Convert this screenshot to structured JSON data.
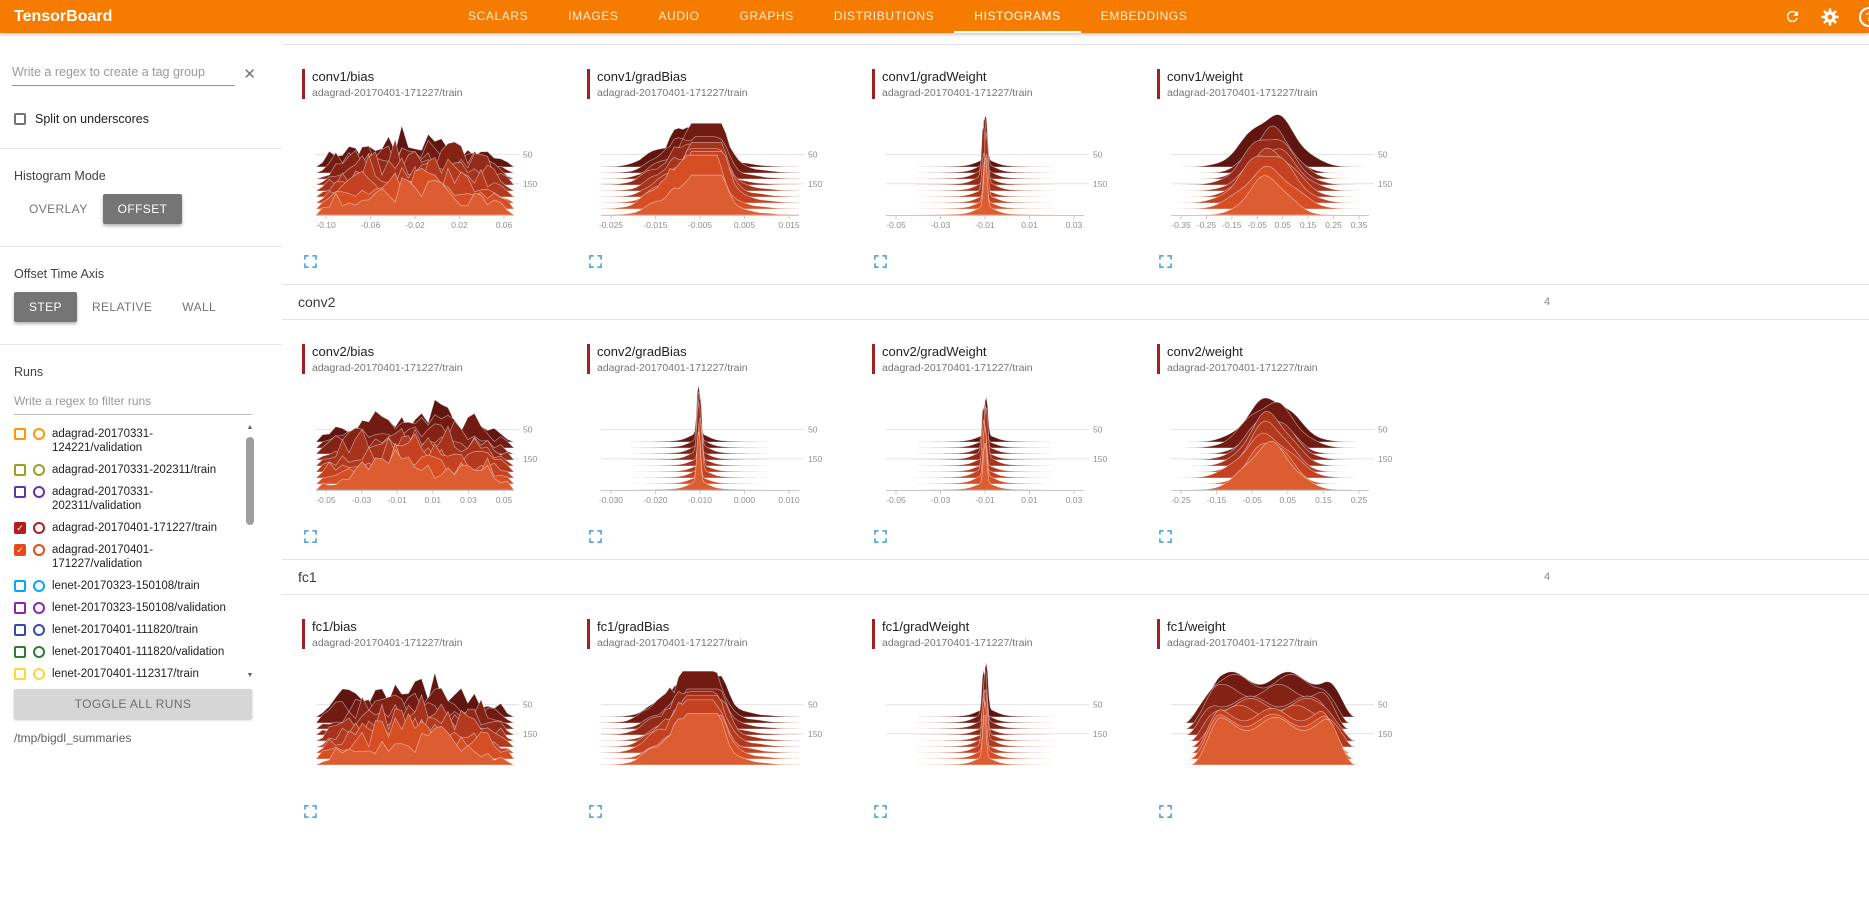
{
  "colors": {
    "header_bg": "#f57c00",
    "card_bar": "#a02121",
    "expand_icon": "#3f9fdc",
    "selected_button_bg": "#757575"
  },
  "header": {
    "title": "TensorBoard",
    "tabs": [
      "SCALARS",
      "IMAGES",
      "AUDIO",
      "GRAPHS",
      "DISTRIBUTIONS",
      "HISTOGRAMS",
      "EMBEDDINGS"
    ],
    "active_tab": "HISTOGRAMS",
    "help_glyph": "?"
  },
  "sidebar": {
    "tag_filter": {
      "placeholder": "Write a regex to create a tag group",
      "value": "",
      "clear_glyph": "✕"
    },
    "split_on_underscores": {
      "label": "Split on underscores",
      "checked": false
    },
    "histogram_mode": {
      "label": "Histogram Mode",
      "options": [
        "OVERLAY",
        "OFFSET"
      ],
      "selected": "OFFSET"
    },
    "offset_time_axis": {
      "label": "Offset Time Axis",
      "options": [
        "STEP",
        "RELATIVE",
        "WALL"
      ],
      "selected": "STEP"
    },
    "runs": {
      "label": "Runs",
      "filter": {
        "placeholder": "Write a regex to filter runs",
        "value": ""
      },
      "check_glyph": "✓",
      "scroll_up_glyph": "▲",
      "scroll_down_glyph": "▼",
      "items": [
        {
          "label": "adagrad-20170331-124221/validation",
          "checked": false,
          "color": "#ff9800"
        },
        {
          "label": "adagrad-20170331-202311/train",
          "checked": false,
          "color": "#9e9d24"
        },
        {
          "label": "adagrad-20170331-202311/validation",
          "checked": false,
          "color": "#5e35b1"
        },
        {
          "label": "adagrad-20170401-171227/train",
          "checked": true,
          "color": "#b71c1c"
        },
        {
          "label": "adagrad-20170401-171227/validation",
          "checked": true,
          "color": "#e64a19"
        },
        {
          "label": "lenet-20170323-150108/train",
          "checked": false,
          "color": "#03a9f4"
        },
        {
          "label": "lenet-20170323-150108/validation",
          "checked": false,
          "color": "#8e24aa"
        },
        {
          "label": "lenet-20170401-111820/train",
          "checked": false,
          "color": "#3949ab"
        },
        {
          "label": "lenet-20170401-111820/validation",
          "checked": false,
          "color": "#2e7d32"
        },
        {
          "label": "lenet-20170401-112317/train",
          "checked": false,
          "color": "#fdd835"
        }
      ],
      "toggle_all_label": "TOGGLE ALL RUNS",
      "log_dir": "/tmp/bigdl_summaries"
    }
  },
  "main": {
    "sections": [
      {
        "name": "",
        "count": "",
        "cards": [
          {
            "title": "conv1/bias",
            "run": "adagrad-20170401-171227/train",
            "type": "histogram-offset",
            "shape": "jagged",
            "x_ticks": [
              "-0.10",
              "-0.06",
              "-0.02",
              "0.02",
              "0.06"
            ],
            "y_ticks": [
              "50",
              "150"
            ]
          },
          {
            "title": "conv1/gradBias",
            "run": "adagrad-20170401-171227/train",
            "type": "histogram-offset",
            "shape": "bumpy",
            "x_ticks": [
              "-0.025",
              "-0.015",
              "-0.005",
              "0.005",
              "0.015"
            ],
            "y_ticks": [
              "50",
              "150"
            ]
          },
          {
            "title": "conv1/gradWeight",
            "run": "adagrad-20170401-171227/train",
            "type": "histogram-offset",
            "shape": "spike",
            "x_ticks": [
              "-0.05",
              "-0.03",
              "-0.01",
              "0.01",
              "0.03"
            ],
            "y_ticks": [
              "50",
              "150"
            ]
          },
          {
            "title": "conv1/weight",
            "run": "adagrad-20170401-171227/train",
            "type": "histogram-offset",
            "shape": "bell",
            "x_ticks": [
              "-0.35",
              "-0.25",
              "-0.15",
              "-0.05",
              "0.05",
              "0.15",
              "0.25",
              "0.35"
            ],
            "y_ticks": [
              "50",
              "150"
            ]
          }
        ]
      },
      {
        "name": "conv2",
        "count": "4",
        "cards": [
          {
            "title": "conv2/bias",
            "run": "adagrad-20170401-171227/train",
            "type": "histogram-offset",
            "shape": "jagged",
            "x_ticks": [
              "-0.05",
              "-0.03",
              "-0.01",
              "0.01",
              "0.03",
              "0.05"
            ],
            "y_ticks": [
              "50",
              "150"
            ]
          },
          {
            "title": "conv2/gradBias",
            "run": "adagrad-20170401-171227/train",
            "type": "histogram-offset",
            "shape": "spike",
            "x_ticks": [
              "-0.030",
              "-0.020",
              "-0.010",
              "0.000",
              "0.010"
            ],
            "y_ticks": [
              "50",
              "150"
            ]
          },
          {
            "title": "conv2/gradWeight",
            "run": "adagrad-20170401-171227/train",
            "type": "histogram-offset",
            "shape": "spike",
            "x_ticks": [
              "-0.05",
              "-0.03",
              "-0.01",
              "0.01",
              "0.03"
            ],
            "y_ticks": [
              "50",
              "150"
            ]
          },
          {
            "title": "conv2/weight",
            "run": "adagrad-20170401-171227/train",
            "type": "histogram-offset",
            "shape": "bell",
            "x_ticks": [
              "-0.25",
              "-0.15",
              "-0.05",
              "0.05",
              "0.15",
              "0.25"
            ],
            "y_ticks": [
              "50",
              "150"
            ]
          }
        ]
      },
      {
        "name": "fc1",
        "count": "4",
        "cards": [
          {
            "title": "fc1/bias",
            "run": "adagrad-20170401-171227/train",
            "type": "histogram-offset",
            "shape": "jagged",
            "x_ticks": [],
            "y_ticks": [
              "50",
              "150"
            ]
          },
          {
            "title": "fc1/gradBias",
            "run": "adagrad-20170401-171227/train",
            "type": "histogram-offset",
            "shape": "bumpy",
            "x_ticks": [],
            "y_ticks": [
              "50",
              "150"
            ]
          },
          {
            "title": "fc1/gradWeight",
            "run": "adagrad-20170401-171227/train",
            "type": "histogram-offset",
            "shape": "spike",
            "x_ticks": [],
            "y_ticks": [
              "50",
              "150"
            ]
          },
          {
            "title": "fc1/weight",
            "run": "adagrad-20170401-171227/train",
            "type": "histogram-offset",
            "shape": "widebell",
            "x_ticks": [],
            "y_ticks": [
              "50",
              "150"
            ]
          }
        ]
      }
    ]
  }
}
